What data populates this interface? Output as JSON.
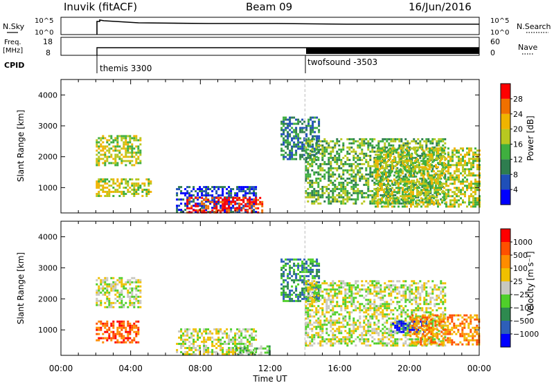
{
  "header": {
    "station": "Inuvik (fitACF)",
    "beam": "Beam 09",
    "date": "16/Jun/2016"
  },
  "nsky_panel": {
    "left_label": "N.Sky",
    "right_label": "N.Search",
    "ytick_top": "10^5",
    "ytick_bottom": "10^0"
  },
  "freq_panel": {
    "left_label_1": "Freq.",
    "left_label_2": "[MHz]",
    "right_label": "Nave",
    "left_ticks": [
      "18",
      "8"
    ],
    "right_ticks": [
      "60",
      "0"
    ]
  },
  "cpid": {
    "label": "CPID",
    "programs": [
      {
        "name": "themis 3300",
        "start_hour": 2.0
      },
      {
        "name": "twofsound -3503",
        "start_hour": 14.0
      }
    ]
  },
  "chart_data": [
    {
      "type": "heatmap",
      "name": "power",
      "ylabel": "Slant Range [km]",
      "yticks": [
        "1000",
        "2000",
        "3000",
        "4000"
      ],
      "ylim": [
        180,
        4500
      ],
      "xlim": [
        0,
        24
      ],
      "colorbar": {
        "label": "Power [dB]",
        "ticks": [
          "4",
          "8",
          "12",
          "16",
          "20",
          "24",
          "28"
        ],
        "colors": [
          "#0000ff",
          "#1f4fb8",
          "#2e7d4f",
          "#3faf3f",
          "#b8c820",
          "#f0b400",
          "#f07000",
          "#ff0000"
        ]
      },
      "regions": [
        {
          "t0": 2.0,
          "t1": 4.6,
          "r0": 1700,
          "r1": 2700,
          "level": 4
        },
        {
          "t0": 2.0,
          "t1": 5.2,
          "r0": 700,
          "r1": 1300,
          "level": 4
        },
        {
          "t0": 6.6,
          "t1": 11.2,
          "r0": 200,
          "r1": 1050,
          "level": 1
        },
        {
          "t0": 7.2,
          "t1": 11.6,
          "r0": 200,
          "r1": 700,
          "level": 7
        },
        {
          "t0": 12.6,
          "t1": 14.8,
          "r0": 1900,
          "r1": 3300,
          "level": 2
        },
        {
          "t0": 14.0,
          "t1": 22.0,
          "r0": 500,
          "r1": 2600,
          "level": 3
        },
        {
          "t0": 18.0,
          "t1": 24.0,
          "r0": 400,
          "r1": 2300,
          "level": 4
        }
      ]
    },
    {
      "type": "heatmap",
      "name": "velocity",
      "ylabel": "Slant Range [km]",
      "yticks": [
        "1000",
        "2000",
        "3000",
        "4000"
      ],
      "ylim": [
        180,
        4500
      ],
      "xlim": [
        0,
        24
      ],
      "xlabel": "Time UT",
      "xticks": [
        "00:00",
        "04:00",
        "08:00",
        "12:00",
        "16:00",
        "20:00",
        "00:00"
      ],
      "colorbar": {
        "label": "Velocity [m s⁻¹]",
        "ticks": [
          "1000",
          "500",
          "100",
          "25",
          "−25",
          "−100",
          "−500",
          "−1000"
        ],
        "colors": [
          "#0000ff",
          "#2e5fb8",
          "#2e8a4f",
          "#4fcf2a",
          "#c8c8c0",
          "#f0c000",
          "#ff8c00",
          "#ff5000",
          "#ff0000"
        ]
      },
      "regions": [
        {
          "t0": 2.0,
          "t1": 4.6,
          "r0": 1700,
          "r1": 2700,
          "level": 4
        },
        {
          "t0": 2.0,
          "t1": 4.4,
          "r0": 600,
          "r1": 1300,
          "level": 7
        },
        {
          "t0": 6.6,
          "t1": 11.2,
          "r0": 200,
          "r1": 1050,
          "level": 4
        },
        {
          "t0": 10.0,
          "t1": 12.0,
          "r0": 200,
          "r1": 500,
          "level": 3
        },
        {
          "t0": 12.6,
          "t1": 14.8,
          "r0": 1900,
          "r1": 3300,
          "level": 2
        },
        {
          "t0": 14.0,
          "t1": 22.0,
          "r0": 500,
          "r1": 2600,
          "level": 4
        },
        {
          "t0": 19.0,
          "t1": 21.0,
          "r0": 900,
          "r1": 1300,
          "level": 0
        },
        {
          "t0": 20.0,
          "t1": 24.0,
          "r0": 500,
          "r1": 1500,
          "level": 6
        }
      ]
    }
  ]
}
